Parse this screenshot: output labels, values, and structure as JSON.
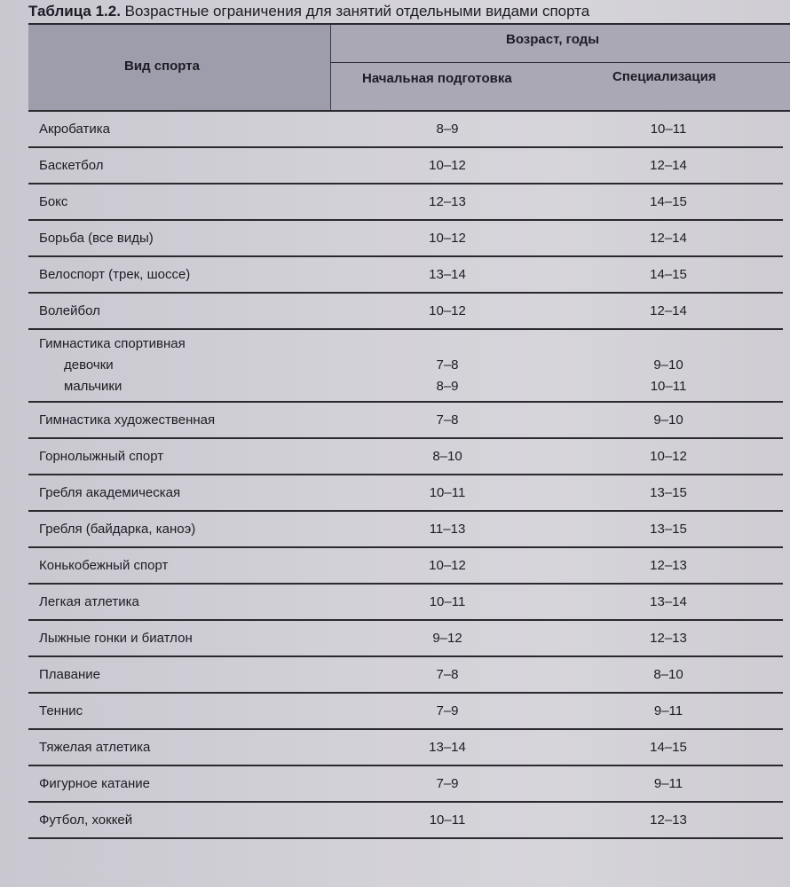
{
  "caption": {
    "number": "Таблица 1.2.",
    "title": "Возрастные ограничения для занятий отдельными видами спорта"
  },
  "header": {
    "sport": "Вид спорта",
    "age": "Возраст, годы",
    "initial": "Начальная подготовка",
    "specialization": "Специализация"
  },
  "rows": [
    {
      "sport": "Акробатика",
      "initial": "8–9",
      "spec": "10–11"
    },
    {
      "sport": "Баскетбол",
      "initial": "10–12",
      "spec": "12–14"
    },
    {
      "sport": "Бокс",
      "initial": "12–13",
      "spec": "14–15"
    },
    {
      "sport": "Борьба (все виды)",
      "initial": "10–12",
      "spec": "12–14"
    },
    {
      "sport": "Велоспорт (трек, шоссе)",
      "initial": "13–14",
      "spec": "14–15"
    },
    {
      "sport": "Волейбол",
      "initial": "10–12",
      "spec": "12–14"
    },
    {
      "sport": "Гимнастика спортивная",
      "initial": "",
      "spec": "",
      "sub": [
        {
          "label": "девочки",
          "initial": "7–8",
          "spec": "9–10"
        },
        {
          "label": "мальчики",
          "initial": "8–9",
          "spec": "10–11"
        }
      ]
    },
    {
      "sport": "Гимнастика художественная",
      "initial": "7–8",
      "spec": "9–10"
    },
    {
      "sport": "Горнолыжный спорт",
      "initial": "8–10",
      "spec": "10–12"
    },
    {
      "sport": "Гребля академическая",
      "initial": "10–11",
      "spec": "13–15"
    },
    {
      "sport": "Гребля (байдарка, каноэ)",
      "initial": "11–13",
      "spec": "13–15"
    },
    {
      "sport": "Конькобежный спорт",
      "initial": "10–12",
      "spec": "12–13"
    },
    {
      "sport": "Легкая атлетика",
      "initial": "10–11",
      "spec": "13–14"
    },
    {
      "sport": "Лыжные гонки и биатлон",
      "initial": "9–12",
      "spec": "12–13"
    },
    {
      "sport": "Плавание",
      "initial": "7–8",
      "spec": "8–10"
    },
    {
      "sport": "Теннис",
      "initial": "7–9",
      "spec": "9–11"
    },
    {
      "sport": "Тяжелая атлетика",
      "initial": "13–14",
      "spec": "14–15"
    },
    {
      "sport": "Фигурное катание",
      "initial": "7–9",
      "spec": "9–11"
    },
    {
      "sport": "Футбол, хоккей",
      "initial": "10–11",
      "spec": "12–13"
    }
  ]
}
